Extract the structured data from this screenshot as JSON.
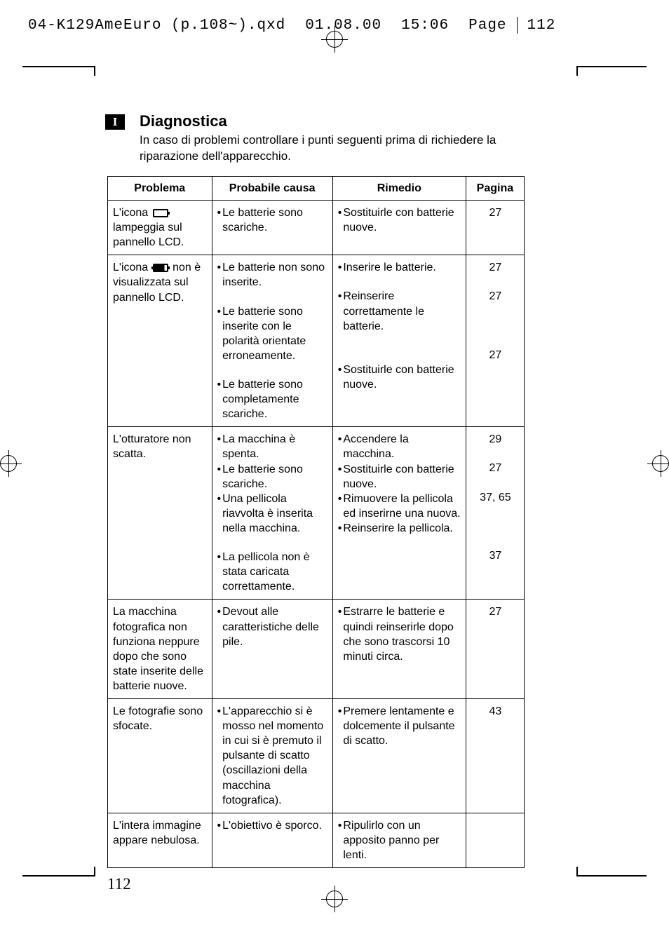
{
  "header": {
    "filename": "04-K129AmeEuro (p.108~).qxd",
    "date": "01.08.00",
    "time": "15:06",
    "page_label": "Page",
    "page_num": "112"
  },
  "lang_badge": "I",
  "title": "Diagnostica",
  "subtitle": "In caso di problemi controllare i punti seguenti prima di richiedere la riparazione dell'apparecchio.",
  "columns": {
    "problema": "Problema",
    "causa": "Probabile causa",
    "rimedio": "Rimedio",
    "pagina": "Pagina"
  },
  "rows": [
    {
      "problema_pre": "L'icona ",
      "problema_icon": "battery-empty",
      "problema_post": " lampeggia sul pannello LCD.",
      "causes": [
        "Le batterie sono scariche."
      ],
      "remedies": [
        "Sostituirle con batterie nuove."
      ],
      "pages": [
        "27"
      ]
    },
    {
      "problema_pre": "L'icona ",
      "problema_icon": "battery-full",
      "problema_post": " non è visualizzata sul pannello LCD.",
      "causes": [
        "Le batterie non sono inserite.",
        "Le batterie sono inserite con le polarità orientate erroneamente.",
        "Le batterie sono completamente scariche."
      ],
      "remedies": [
        "Inserire le batterie.",
        "Reinserire correttamente le batterie.",
        "Sostituirle con batterie nuove."
      ],
      "pages": [
        "27",
        "27",
        "27"
      ],
      "spacers": [
        true,
        true,
        false
      ]
    },
    {
      "problema": "L'otturatore non scatta.",
      "causes": [
        "La macchina è spenta.",
        "Le batterie sono scariche.",
        "Una pellicola riavvolta è inserita nella macchina.",
        "La pellicola non è stata caricata correttamente."
      ],
      "remedies": [
        "Accendere la macchina.",
        "Sostituirle con batterie nuove.",
        "Rimuovere la pellicola ed inserirne una nuova.",
        "Reinserire la pellicola."
      ],
      "pages": [
        "29",
        "27",
        "37, 65",
        "37"
      ],
      "rem_spacer_before_last": true
    },
    {
      "problema": "La macchina fotografica non funziona neppure dopo che sono state inserite delle batterie nuove.",
      "causes": [
        "Devout alle caratteristiche delle pile."
      ],
      "remedies": [
        "Estrarre le batterie e quindi reinserirle dopo che sono trascorsi 10 minuti circa."
      ],
      "pages": [
        "27"
      ]
    },
    {
      "problema": "Le fotografie sono sfocate.",
      "causes": [
        "L'apparecchio si è mosso nel momento in cui si è premuto il pulsante di scatto (oscillazioni della macchina fotografica)."
      ],
      "remedies": [
        "Premere lentamente e dolcemente il pulsante di scatto."
      ],
      "pages": [
        "43"
      ]
    },
    {
      "problema": "L'intera immagine appare nebulosa.",
      "causes": [
        "L'obiettivo è sporco."
      ],
      "remedies": [
        "Ripulirlo con un apposito panno per lenti."
      ],
      "pages": [
        ""
      ]
    }
  ],
  "page_number": "112"
}
